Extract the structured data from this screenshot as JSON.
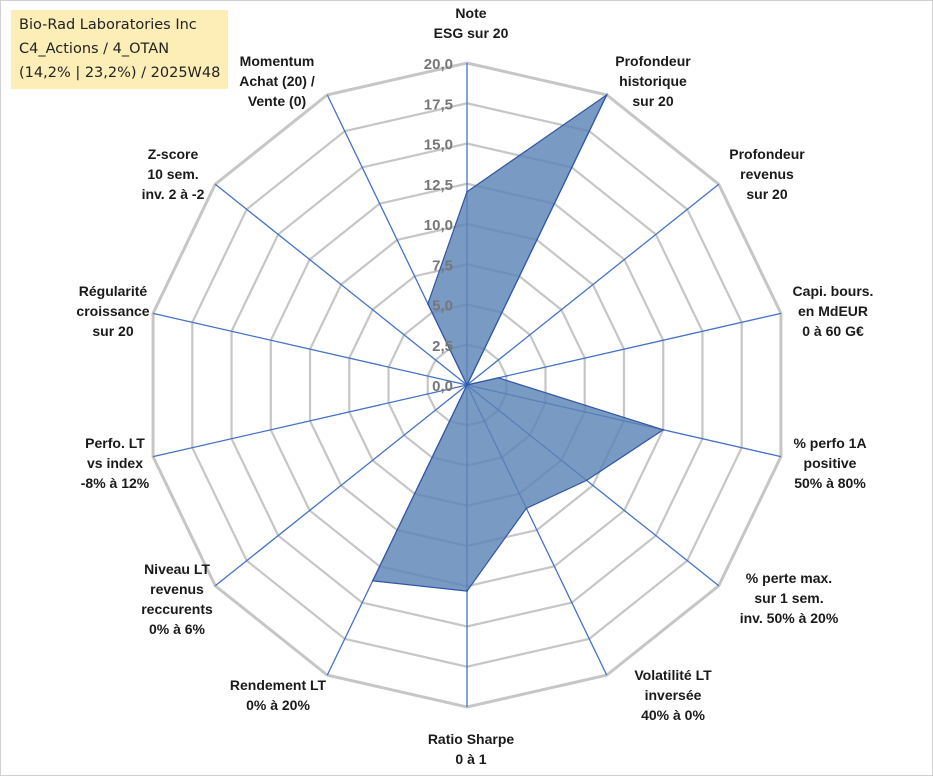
{
  "header": {
    "line1": "Bio-Rad Laboratories Inc",
    "line2": "C4_Actions / 4_OTAN",
    "line3": "(14,2% | 23,2%) / 2025W48"
  },
  "colors": {
    "grid": "#c6c6c6",
    "spoke": "#4472c4",
    "fill": "#5b84b6",
    "stroke": "#2f56a6",
    "title_bg": "#fdeeb8"
  },
  "chart_data": {
    "type": "radar",
    "r_min": 0,
    "r_max": 20,
    "r_step": 2.5,
    "tick_labels": [
      "0,0",
      "2,5",
      "5,0",
      "7,5",
      "10,0",
      "12,5",
      "15,0",
      "17,5",
      "20,0"
    ],
    "axes": [
      [
        "Note",
        "ESG sur 20"
      ],
      [
        "Profondeur",
        "historique",
        "sur 20"
      ],
      [
        "Profondeur",
        "revenus",
        "sur 20"
      ],
      [
        "Capi. bours.",
        "en MdEUR",
        "0 à 60 G€"
      ],
      [
        "% perfo 1A",
        "positive",
        "50% à 80%"
      ],
      [
        "% perte max.",
        "sur 1 sem.",
        "inv. 50% à 20%"
      ],
      [
        "Volatilité LT",
        "inversée",
        "40% à 0%"
      ],
      [
        "Ratio Sharpe",
        "0 à 1"
      ],
      [
        "Rendement LT",
        "0% à 20%"
      ],
      [
        "Niveau LT",
        "revenus",
        "reccurents",
        "0% à 6%"
      ],
      [
        "Perfo. LT",
        "vs index",
        "-8% à 12%"
      ],
      [
        "Régularité",
        "croissance",
        "sur 20"
      ],
      [
        "Z-score",
        "10 sem.",
        "inv. 2 à -2"
      ],
      [
        "Momentum",
        "Achat (20) /",
        "Vente (0)"
      ]
    ],
    "series": [
      {
        "values": [
          12.0,
          20.0,
          0.0,
          2.0,
          12.5,
          9.5,
          8.5,
          12.8,
          13.5,
          0.0,
          0.0,
          0.0,
          0.0,
          5.6
        ]
      }
    ],
    "grid": true
  }
}
